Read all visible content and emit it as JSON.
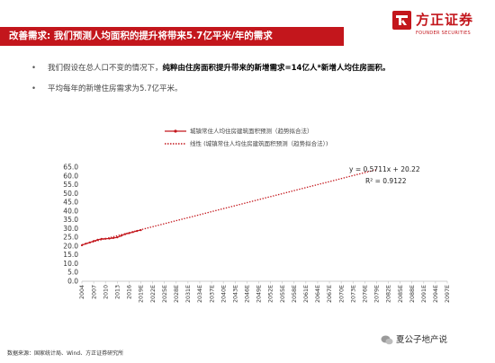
{
  "header": {
    "title": "改善需求: 我们预测人均面积的提升将带来5.7亿平米/年的需求",
    "brand_name": "方正证券",
    "brand_en": "FOUNDER SECURITIES",
    "accent_color": "#c3161c"
  },
  "bullets": [
    {
      "plain": "我们假设在总人口不变的情况下，",
      "bold": "纯粹由住房面积提升带来的新增需求=14亿人*新增人均住房面积。"
    },
    {
      "plain": "平均每年的新增住房需求为5.7亿平米。",
      "bold": ""
    }
  ],
  "footer": {
    "source": "数据来源：国家统计局、Wind、方正证券研究所"
  },
  "watermark": {
    "text": "夏公子地产说"
  },
  "chart_data": {
    "type": "line",
    "ylim": [
      0,
      65
    ],
    "yticks": [
      "0.0",
      "5.0",
      "10.0",
      "15.0",
      "20.0",
      "25.0",
      "30.0",
      "35.0",
      "40.0",
      "45.0",
      "50.0",
      "55.0",
      "60.0",
      "65.0"
    ],
    "x_categories": [
      "2004",
      "2007",
      "2010",
      "2013",
      "2016",
      "2019E",
      "2022E",
      "2025E",
      "2028E",
      "2031E",
      "2034E",
      "2037E",
      "2040E",
      "2043E",
      "2046E",
      "2049E",
      "2052E",
      "2055E",
      "2058E",
      "2061E",
      "2064E",
      "2067E",
      "2070E",
      "2073E",
      "2076E",
      "2079E",
      "2082E",
      "2085E",
      "2088E",
      "2091E",
      "2094E",
      "2097E"
    ],
    "x_tick_labels": [
      "2004",
      "2007",
      "2010",
      "2013",
      "2016",
      "2019E",
      "2022E",
      "2025E",
      "2028E",
      "2031E",
      "2034E",
      "2037E",
      "2040E",
      "2043E",
      "2046E",
      "2049E",
      "2052E",
      "2055E",
      "2058E",
      "2061E",
      "2064E",
      "2067E",
      "2070E",
      "2073E",
      "2076E",
      "2079E",
      "2082E",
      "2085E",
      "2088E",
      "2091E",
      "2094E",
      "2097E"
    ],
    "x_first": 2004,
    "x_last": 2097,
    "series": [
      {
        "name": "城镇常住人均住房建筑面积预测（趋势拟合法）",
        "style": "solid-marker",
        "color": "#c3161c",
        "x": [
          2004,
          2005,
          2006,
          2007,
          2008,
          2009,
          2010,
          2011,
          2012,
          2013,
          2014,
          2015,
          2016,
          2017,
          2018,
          2019
        ],
        "values": [
          20.5,
          21.4,
          22.1,
          22.9,
          23.6,
          24.1,
          24.2,
          24.3,
          24.6,
          25.0,
          25.9,
          26.8,
          27.4,
          28.0,
          28.6,
          29.1
        ]
      },
      {
        "name": "线性 (城镇常住人均住房建筑面积预测（趋势拟合法）)",
        "style": "dotted",
        "color": "#c3161c",
        "x": [
          2004,
          2079
        ],
        "values": [
          20.79,
          63.6
        ]
      }
    ],
    "annotations": [
      "y = 0.5711x + 20.22",
      "R² = 0.9122"
    ]
  }
}
